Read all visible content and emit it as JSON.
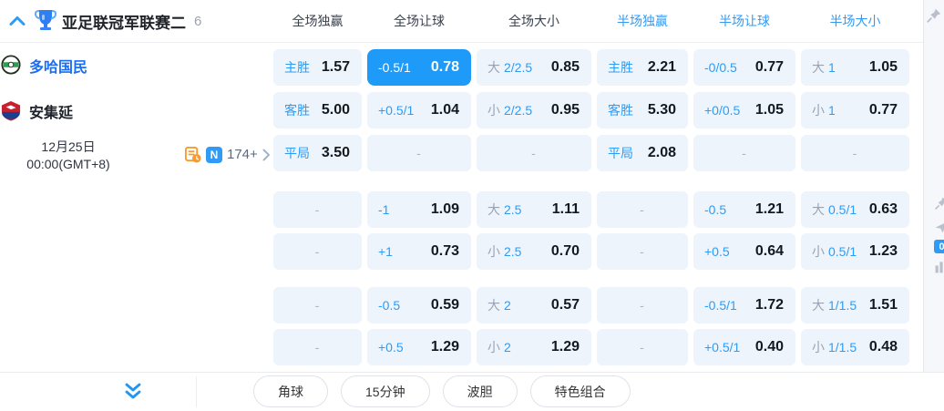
{
  "colors": {
    "accent_blue": "#2F9BF7",
    "selected_cell_bg": "#1E9AF9",
    "cell_bg": "#EDF4FB",
    "home_team_blue": "#1B6EF3",
    "promo_orange": "#F79B2E"
  },
  "header": {
    "league": "亚足联冠军联赛二",
    "count": "6",
    "columns": [
      {
        "key": "ft-1x2",
        "label": "全场独赢",
        "style": "full"
      },
      {
        "key": "ft-handicap",
        "label": "全场让球",
        "style": "full"
      },
      {
        "key": "ft-ou",
        "label": "全场大小",
        "style": "full"
      },
      {
        "key": "ht-1x2",
        "label": "半场独赢",
        "style": "half"
      },
      {
        "key": "ht-handicap",
        "label": "半场让球",
        "style": "half"
      },
      {
        "key": "ht-ou",
        "label": "半场大小",
        "style": "half"
      }
    ],
    "icons": [
      "chevron-up-icon",
      "trophy-icon",
      "pin-icon"
    ]
  },
  "match": {
    "home_team": "多哈国民",
    "away_team": "安集延",
    "date": "12月25日",
    "time": "00:00(GMT+8)",
    "news_badge": "N",
    "markets_count": "174+"
  },
  "dash_char": "-",
  "odds_sections": [
    {
      "rows": [
        [
          {
            "t": "label",
            "label": "主胜",
            "value": "1.57"
          },
          {
            "t": "hcp",
            "label": "-0.5/1",
            "value": "0.78",
            "selected": true
          },
          {
            "t": "ou",
            "prefix": "大",
            "line": "2/2.5",
            "value": "0.85"
          },
          {
            "t": "label",
            "label": "主胜",
            "value": "2.21"
          },
          {
            "t": "hcp",
            "label": "-0/0.5",
            "value": "0.77"
          },
          {
            "t": "ou",
            "prefix": "大",
            "line": "1",
            "value": "1.05"
          }
        ],
        [
          {
            "t": "label",
            "label": "客胜",
            "value": "5.00"
          },
          {
            "t": "hcp",
            "label": "+0.5/1",
            "value": "1.04"
          },
          {
            "t": "ou",
            "prefix": "小",
            "line": "2/2.5",
            "value": "0.95"
          },
          {
            "t": "label",
            "label": "客胜",
            "value": "5.30"
          },
          {
            "t": "hcp",
            "label": "+0/0.5",
            "value": "1.05"
          },
          {
            "t": "ou",
            "prefix": "小",
            "line": "1",
            "value": "0.77"
          }
        ],
        [
          {
            "t": "label",
            "label": "平局",
            "value": "3.50"
          },
          {
            "t": "dash"
          },
          {
            "t": "dash"
          },
          {
            "t": "label",
            "label": "平局",
            "value": "2.08"
          },
          {
            "t": "dash"
          },
          {
            "t": "dash"
          }
        ]
      ]
    },
    {
      "rows": [
        [
          {
            "t": "dash"
          },
          {
            "t": "hcp",
            "label": "-1",
            "value": "1.09"
          },
          {
            "t": "ou",
            "prefix": "大",
            "line": "2.5",
            "value": "1.11"
          },
          {
            "t": "dash"
          },
          {
            "t": "hcp",
            "label": "-0.5",
            "value": "1.21"
          },
          {
            "t": "ou",
            "prefix": "大",
            "line": "0.5/1",
            "value": "0.63"
          }
        ],
        [
          {
            "t": "dash"
          },
          {
            "t": "hcp",
            "label": "+1",
            "value": "0.73"
          },
          {
            "t": "ou",
            "prefix": "小",
            "line": "2.5",
            "value": "0.70"
          },
          {
            "t": "dash"
          },
          {
            "t": "hcp",
            "label": "+0.5",
            "value": "0.64"
          },
          {
            "t": "ou",
            "prefix": "小",
            "line": "0.5/1",
            "value": "1.23"
          }
        ]
      ]
    },
    {
      "rows": [
        [
          {
            "t": "dash"
          },
          {
            "t": "hcp",
            "label": "-0.5",
            "value": "0.59"
          },
          {
            "t": "ou",
            "prefix": "大",
            "line": "2",
            "value": "0.57"
          },
          {
            "t": "dash"
          },
          {
            "t": "hcp",
            "label": "-0.5/1",
            "value": "1.72"
          },
          {
            "t": "ou",
            "prefix": "大",
            "line": "1/1.5",
            "value": "1.51"
          }
        ],
        [
          {
            "t": "dash"
          },
          {
            "t": "hcp",
            "label": "+0.5",
            "value": "1.29"
          },
          {
            "t": "ou",
            "prefix": "小",
            "line": "2",
            "value": "1.29"
          },
          {
            "t": "dash"
          },
          {
            "t": "hcp",
            "label": "+0.5/1",
            "value": "0.40"
          },
          {
            "t": "ou",
            "prefix": "小",
            "line": "1/1.5",
            "value": "0.48"
          }
        ]
      ]
    }
  ],
  "tools": {
    "buttons": [
      "角球",
      "15分钟",
      "波胆",
      "特色组合"
    ],
    "icons": [
      "expand-double-chevron-icon"
    ]
  },
  "side_panel": {
    "badge": "0",
    "icons": [
      "pin-icon",
      "send-icon",
      "counter-badge",
      "stats-icon"
    ]
  }
}
